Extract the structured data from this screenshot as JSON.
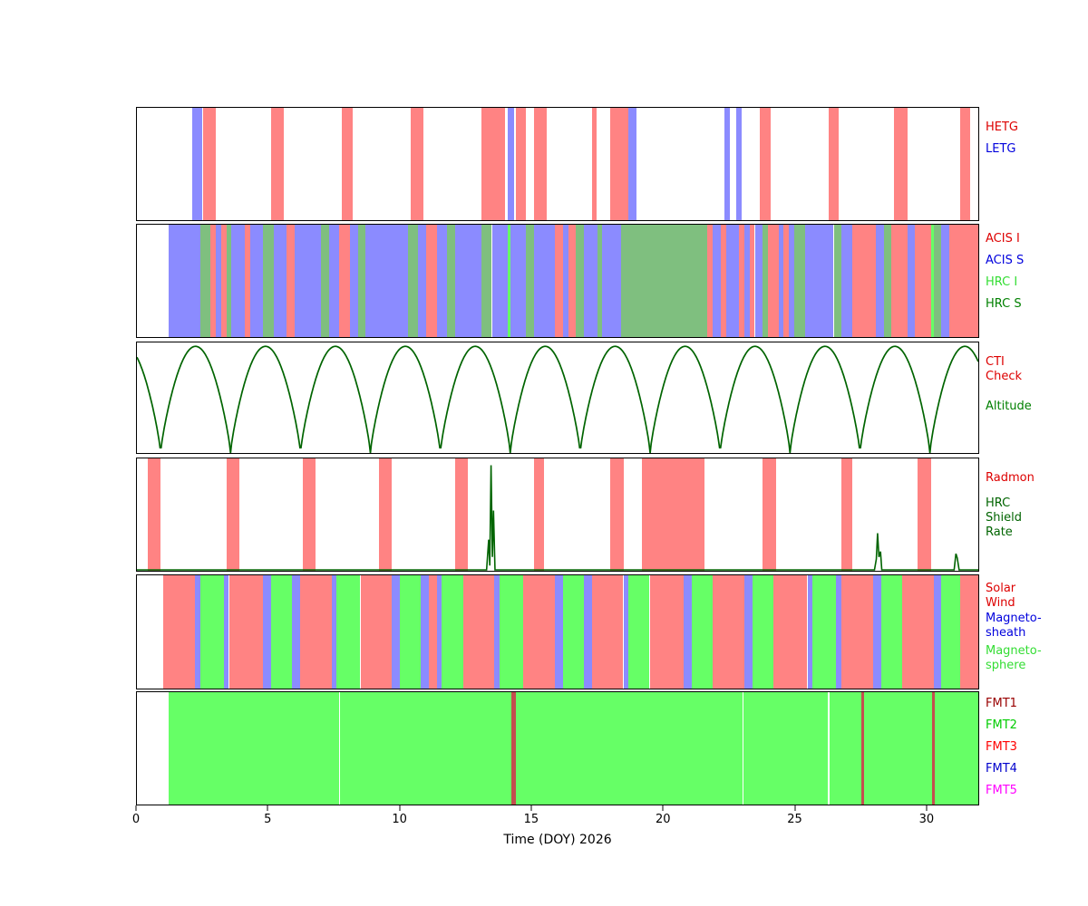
{
  "figure": {
    "xlabel": "Time (DOY) 2026",
    "x_range": [
      0,
      32
    ],
    "x_ticks": [
      0,
      5,
      10,
      15,
      20,
      25,
      30
    ],
    "background": "#ffffff"
  },
  "chart_data": [
    {
      "panel": "gratings",
      "type": "bar",
      "series": [
        {
          "name": "HETG",
          "color": "#ff8383",
          "intervals": [
            [
              2.5,
              3.0
            ],
            [
              5.1,
              5.6
            ],
            [
              7.8,
              8.2
            ],
            [
              10.4,
              10.9
            ],
            [
              13.1,
              14.0
            ],
            [
              14.4,
              14.8
            ],
            [
              15.1,
              15.6
            ],
            [
              17.3,
              17.5
            ],
            [
              18.0,
              18.7
            ],
            [
              23.7,
              24.1
            ],
            [
              26.3,
              26.7
            ],
            [
              28.8,
              29.3
            ],
            [
              31.3,
              31.7
            ]
          ]
        },
        {
          "name": "LETG",
          "color": "#8b8bff",
          "intervals": [
            [
              2.1,
              2.5
            ],
            [
              14.1,
              14.35
            ],
            [
              18.7,
              19.0
            ],
            [
              22.35,
              22.55
            ],
            [
              22.8,
              23.0
            ]
          ]
        }
      ],
      "labels": [
        {
          "text": "HETG",
          "color": "#dd0000",
          "dy": 14
        },
        {
          "text": "LETG",
          "color": "#0000dd",
          "dy": 38
        }
      ]
    },
    {
      "panel": "focal-plane-instrument",
      "type": "bar",
      "series": [
        {
          "name": "ACIS I",
          "color": "#ff8383",
          "intervals": [
            [
              2.8,
              3.0
            ],
            [
              3.2,
              3.4
            ],
            [
              4.1,
              4.3
            ],
            [
              5.7,
              6.0
            ],
            [
              7.7,
              8.1
            ],
            [
              11.0,
              11.4
            ],
            [
              15.9,
              16.2
            ],
            [
              16.4,
              16.7
            ],
            [
              21.7,
              21.9
            ],
            [
              22.2,
              22.4
            ],
            [
              22.9,
              23.1
            ],
            [
              23.3,
              23.5
            ],
            [
              24.0,
              24.4
            ],
            [
              24.6,
              24.8
            ],
            [
              27.2,
              28.1
            ],
            [
              28.7,
              29.3
            ],
            [
              29.6,
              30.2
            ],
            [
              30.9,
              32.0
            ]
          ]
        },
        {
          "name": "ACIS S",
          "color": "#8b8bff",
          "intervals": [
            [
              1.2,
              2.4
            ],
            [
              3.0,
              3.2
            ],
            [
              3.6,
              4.1
            ],
            [
              4.3,
              4.8
            ],
            [
              5.2,
              5.7
            ],
            [
              6.0,
              7.0
            ],
            [
              7.3,
              7.7
            ],
            [
              8.1,
              8.4
            ],
            [
              8.7,
              10.3
            ],
            [
              10.7,
              11.0
            ],
            [
              11.4,
              11.8
            ],
            [
              12.1,
              13.1
            ],
            [
              13.5,
              14.1
            ],
            [
              14.2,
              14.8
            ],
            [
              15.1,
              15.9
            ],
            [
              16.2,
              16.4
            ],
            [
              17.0,
              17.5
            ],
            [
              17.7,
              18.4
            ],
            [
              21.9,
              22.2
            ],
            [
              22.4,
              22.9
            ],
            [
              23.1,
              23.3
            ],
            [
              23.5,
              23.8
            ],
            [
              24.4,
              24.6
            ],
            [
              24.8,
              25.0
            ],
            [
              25.4,
              26.5
            ],
            [
              26.8,
              27.2
            ],
            [
              28.1,
              28.4
            ],
            [
              29.3,
              29.6
            ],
            [
              30.6,
              30.9
            ]
          ]
        },
        {
          "name": "HRC I",
          "color": "#66ff66",
          "intervals": [
            [
              14.1,
              14.2
            ],
            [
              30.2,
              30.3
            ]
          ]
        },
        {
          "name": "HRC S",
          "color": "#7fbf7f",
          "intervals": [
            [
              2.4,
              2.8
            ],
            [
              3.4,
              3.6
            ],
            [
              4.8,
              5.2
            ],
            [
              7.0,
              7.3
            ],
            [
              8.4,
              8.7
            ],
            [
              10.3,
              10.7
            ],
            [
              11.8,
              12.1
            ],
            [
              13.1,
              13.5
            ],
            [
              14.8,
              15.1
            ],
            [
              16.7,
              17.0
            ],
            [
              17.5,
              17.7
            ],
            [
              18.4,
              21.7
            ],
            [
              23.8,
              24.0
            ],
            [
              25.0,
              25.4
            ],
            [
              26.5,
              26.8
            ],
            [
              28.4,
              28.7
            ],
            [
              30.3,
              30.6
            ]
          ]
        }
      ],
      "labels": [
        {
          "text": "ACIS I",
          "color": "#dd0000",
          "dy": 8
        },
        {
          "text": "ACIS S",
          "color": "#0000dd",
          "dy": 32
        },
        {
          "text": "HRC I",
          "color": "#33dd33",
          "dy": 56
        },
        {
          "text": "HRC S",
          "color": "#008000",
          "dy": 80
        }
      ]
    },
    {
      "panel": "altitude",
      "type": "line",
      "series": [
        {
          "name": "CTI Check",
          "color": "#ff8383",
          "intervals": []
        }
      ],
      "curve": {
        "name": "Altitude",
        "color": "#006400",
        "period": 2.66,
        "min_phase": 0.9,
        "shape": 0.8,
        "max_frac": 0.965
      },
      "labels": [
        {
          "text": "CTI\nCheck",
          "color": "#dd0000",
          "dy": 14
        },
        {
          "text": "Altitude",
          "color": "#008000",
          "dy": 63
        }
      ]
    },
    {
      "panel": "radmon",
      "type": "bar",
      "series": [
        {
          "name": "Radmon",
          "color": "#ff8383",
          "intervals": [
            [
              0.4,
              0.9
            ],
            [
              3.4,
              3.9
            ],
            [
              6.3,
              6.8
            ],
            [
              9.2,
              9.7
            ],
            [
              12.1,
              12.6
            ],
            [
              15.1,
              15.5
            ],
            [
              18.0,
              18.5
            ],
            [
              19.2,
              21.6
            ],
            [
              23.8,
              24.3
            ],
            [
              26.8,
              27.2
            ],
            [
              29.7,
              30.2
            ]
          ]
        }
      ],
      "spikes": {
        "name": "HRC Shield Rate",
        "color": "#006400",
        "points": [
          [
            13.3,
            0
          ],
          [
            13.38,
            0.28
          ],
          [
            13.42,
            0.04
          ],
          [
            13.47,
            0.97
          ],
          [
            13.52,
            0.12
          ],
          [
            13.56,
            0.55
          ],
          [
            13.62,
            0
          ],
          [
            28.05,
            0
          ],
          [
            28.12,
            0.1
          ],
          [
            28.17,
            0.34
          ],
          [
            28.22,
            0.12
          ],
          [
            28.28,
            0.17
          ],
          [
            28.33,
            0
          ],
          [
            31.08,
            0
          ],
          [
            31.15,
            0.15
          ],
          [
            31.2,
            0.11
          ],
          [
            31.27,
            0
          ]
        ]
      },
      "labels": [
        {
          "text": "Radmon",
          "color": "#dd0000",
          "dy": 14
        },
        {
          "text": "HRC\nShield\nRate",
          "color": "#006400",
          "dy": 42
        }
      ]
    },
    {
      "panel": "solar-wind-regions",
      "type": "bar",
      "series": [
        {
          "name": "Solar Wind",
          "color": "#ff8383",
          "intervals": [
            [
              1.0,
              2.2
            ],
            [
              3.5,
              4.8
            ],
            [
              6.2,
              7.4
            ],
            [
              8.5,
              9.7
            ],
            [
              11.1,
              11.4
            ],
            [
              12.4,
              13.6
            ],
            [
              14.7,
              15.9
            ],
            [
              17.3,
              18.5
            ],
            [
              19.5,
              20.8
            ],
            [
              21.9,
              23.1
            ],
            [
              24.2,
              25.5
            ],
            [
              26.8,
              28.0
            ],
            [
              29.1,
              30.3
            ],
            [
              31.3,
              32.0
            ]
          ]
        },
        {
          "name": "Magneto-sheath",
          "color": "#8b8bff",
          "intervals": [
            [
              2.2,
              2.4
            ],
            [
              3.3,
              3.5
            ],
            [
              4.8,
              5.1
            ],
            [
              5.9,
              6.2
            ],
            [
              7.4,
              7.6
            ],
            [
              9.7,
              10.0
            ],
            [
              10.8,
              11.1
            ],
            [
              11.4,
              11.6
            ],
            [
              13.6,
              13.8
            ],
            [
              15.9,
              16.2
            ],
            [
              17.0,
              17.3
            ],
            [
              18.5,
              18.7
            ],
            [
              20.8,
              21.1
            ],
            [
              23.1,
              23.4
            ],
            [
              25.5,
              25.7
            ],
            [
              26.6,
              26.8
            ],
            [
              28.0,
              28.3
            ],
            [
              30.3,
              30.6
            ]
          ]
        },
        {
          "name": "Magneto-sphere",
          "color": "#66ff66",
          "intervals": [
            [
              2.4,
              3.3
            ],
            [
              5.1,
              5.9
            ],
            [
              7.6,
              8.5
            ],
            [
              10.0,
              10.8
            ],
            [
              11.6,
              12.4
            ],
            [
              13.8,
              14.7
            ],
            [
              16.2,
              17.0
            ],
            [
              18.7,
              19.5
            ],
            [
              21.1,
              21.9
            ],
            [
              23.4,
              24.2
            ],
            [
              25.7,
              26.6
            ],
            [
              28.3,
              29.1
            ],
            [
              30.6,
              31.3
            ]
          ]
        }
      ],
      "labels": [
        {
          "text": "Solar\nWind",
          "color": "#dd0000",
          "dy": 7
        },
        {
          "text": "Magneto-\nsheath",
          "color": "#0000dd",
          "dy": 40
        },
        {
          "text": "Magneto-\nsphere",
          "color": "#33dd33",
          "dy": 76
        }
      ]
    },
    {
      "panel": "telemetry-format",
      "type": "bar",
      "series": [
        {
          "name": "FMT1",
          "color": "#c34f4f",
          "intervals": [
            [
              14.25,
              14.4
            ],
            [
              27.55,
              27.65
            ],
            [
              30.25,
              30.35
            ]
          ]
        },
        {
          "name": "FMT2",
          "color": "#66ff66",
          "intervals": [
            [
              1.2,
              7.68
            ],
            [
              7.73,
              14.25
            ],
            [
              14.4,
              23.03
            ],
            [
              23.08,
              26.28
            ],
            [
              26.33,
              27.55
            ],
            [
              27.65,
              30.25
            ],
            [
              30.35,
              32.0
            ]
          ]
        },
        {
          "name": "FMT3",
          "color": "#ff4444",
          "intervals": []
        },
        {
          "name": "FMT4",
          "color": "#4444ff",
          "intervals": []
        },
        {
          "name": "FMT5",
          "color": "#ff00ff",
          "intervals": []
        }
      ],
      "labels": [
        {
          "text": "FMT1",
          "color": "#990000",
          "dy": 5
        },
        {
          "text": "FMT2",
          "color": "#00cc00",
          "dy": 29
        },
        {
          "text": "FMT3",
          "color": "#ff0000",
          "dy": 53
        },
        {
          "text": "FMT4",
          "color": "#0000cc",
          "dy": 77
        },
        {
          "text": "FMT5",
          "color": "#ff00ff",
          "dy": 101
        }
      ]
    }
  ]
}
